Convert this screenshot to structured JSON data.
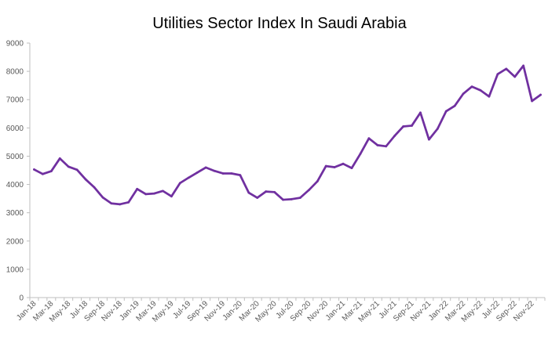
{
  "chart_data": {
    "type": "line",
    "title": "Utilities Sector Index In Saudi Arabia",
    "xlabel": "",
    "ylabel": "",
    "ylim": [
      0,
      9000
    ],
    "yticks": [
      0,
      1000,
      2000,
      3000,
      4000,
      5000,
      6000,
      7000,
      8000,
      9000
    ],
    "grid": false,
    "legend": "none",
    "line_color": "#7030A0",
    "axis_color": "#BFBFBF",
    "tick_labels": [
      "Jan-18",
      "Mar-18",
      "May-18",
      "Jul-18",
      "Sep-18",
      "Nov-18",
      "Jan-19",
      "Mar-19",
      "May-19",
      "Jul-19",
      "Sep-19",
      "Nov-19",
      "Jan-20",
      "Mar-20",
      "May-20",
      "Jul-20",
      "Sep-20",
      "Nov-20",
      "Jan-21",
      "Mar-21",
      "May-21",
      "Jul-21",
      "Sep-21",
      "Nov-21",
      "Jan-22",
      "Mar-22",
      "May-22",
      "Jul-22",
      "Sep-22",
      "Nov-22"
    ],
    "x": [
      "Jan-18",
      "Feb-18",
      "Mar-18",
      "Apr-18",
      "May-18",
      "Jun-18",
      "Jul-18",
      "Aug-18",
      "Sep-18",
      "Oct-18",
      "Nov-18",
      "Dec-18",
      "Jan-19",
      "Feb-19",
      "Mar-19",
      "Apr-19",
      "May-19",
      "Jun-19",
      "Jul-19",
      "Aug-19",
      "Sep-19",
      "Oct-19",
      "Nov-19",
      "Dec-19",
      "Jan-20",
      "Feb-20",
      "Mar-20",
      "Apr-20",
      "May-20",
      "Jun-20",
      "Jul-20",
      "Aug-20",
      "Sep-20",
      "Oct-20",
      "Nov-20",
      "Dec-20",
      "Jan-21",
      "Feb-21",
      "Mar-21",
      "Apr-21",
      "May-21",
      "Jun-21",
      "Jul-21",
      "Aug-21",
      "Sep-21",
      "Oct-21",
      "Nov-21",
      "Dec-21",
      "Jan-22",
      "Feb-22",
      "Mar-22",
      "Apr-22",
      "May-22",
      "Jun-22",
      "Jul-22",
      "Aug-22",
      "Sep-22",
      "Oct-22",
      "Nov-22",
      "Dec-22"
    ],
    "series": [
      {
        "values": [
          4530,
          4370,
          4470,
          4920,
          4630,
          4520,
          4180,
          3900,
          3540,
          3330,
          3300,
          3370,
          3840,
          3660,
          3680,
          3770,
          3580,
          4050,
          4240,
          4420,
          4600,
          4480,
          4390,
          4390,
          4330,
          3710,
          3530,
          3750,
          3730,
          3460,
          3480,
          3530,
          3800,
          4110,
          4650,
          4610,
          4730,
          4580,
          5080,
          5630,
          5390,
          5350,
          5720,
          6050,
          6080,
          6540,
          5590,
          5970,
          6590,
          6780,
          7210,
          7460,
          7330,
          7110,
          7900,
          8090,
          7810,
          8200,
          6950,
          7170
        ]
      }
    ]
  }
}
